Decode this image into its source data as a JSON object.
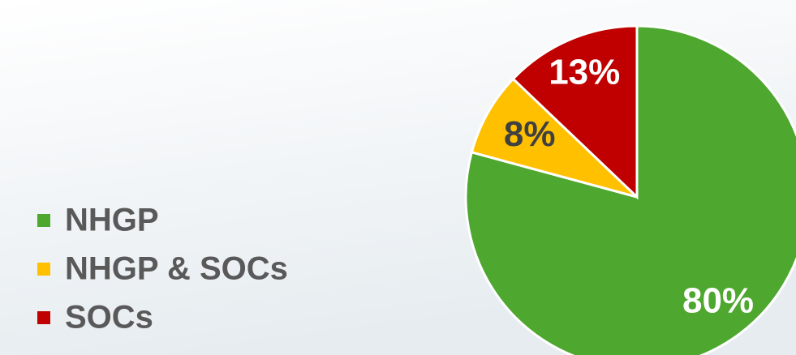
{
  "chart_data": {
    "type": "pie",
    "categories": [
      "NHGP",
      "NHGP & SOCs",
      "SOCs"
    ],
    "values": [
      80,
      8,
      13
    ],
    "value_labels": [
      "80%",
      "8%",
      "13%"
    ],
    "colors": [
      "#4ea72e",
      "#ffc000",
      "#c00000"
    ],
    "legend": "left"
  }
}
